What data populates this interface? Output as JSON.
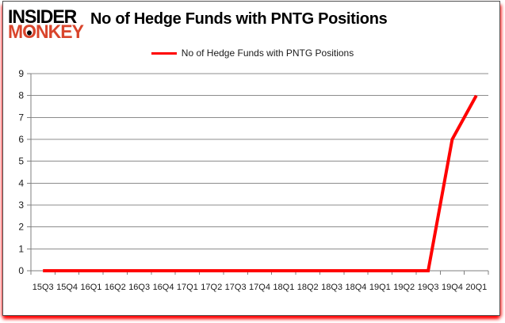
{
  "brand": {
    "line1": "INSIDER",
    "line2": "MONKEY",
    "accent_color": "#d9452c"
  },
  "header": {
    "title": "No of Hedge Funds with PNTG Positions"
  },
  "legend": {
    "label": "No of Hedge Funds with PNTG Positions",
    "swatch_color": "#ff0000"
  },
  "chart_data": {
    "type": "line",
    "title": "No of Hedge Funds with PNTG Positions",
    "categories": [
      "15Q3",
      "15Q4",
      "16Q1",
      "16Q2",
      "16Q3",
      "16Q4",
      "17Q1",
      "17Q2",
      "17Q3",
      "17Q4",
      "18Q1",
      "18Q2",
      "18Q3",
      "18Q4",
      "19Q1",
      "19Q2",
      "19Q3",
      "19Q4",
      "20Q1"
    ],
    "series": [
      {
        "name": "No of Hedge Funds with PNTG Positions",
        "color": "#ff0000",
        "values": [
          0,
          0,
          0,
          0,
          0,
          0,
          0,
          0,
          0,
          0,
          0,
          0,
          0,
          0,
          0,
          0,
          0,
          6,
          8
        ]
      }
    ],
    "xlabel": "",
    "ylabel": "",
    "ylim": [
      0,
      9
    ],
    "yticks": [
      0,
      1,
      2,
      3,
      4,
      5,
      6,
      7,
      8,
      9
    ],
    "grid": true,
    "gridline_color": "#8c8c8c",
    "axis_color": "#7f7f7f",
    "tick_label_color": "#1a1a1a",
    "legend_position": "top"
  }
}
